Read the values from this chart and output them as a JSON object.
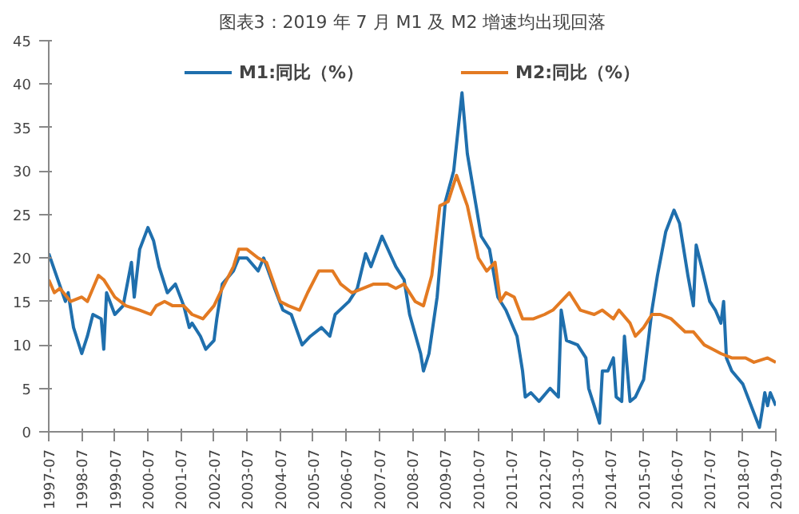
{
  "chart_data": {
    "type": "line",
    "title": "图表3：2019 年 7 月 M1 及 M2 增速均出现回落",
    "xlim": [
      "1997-07",
      "2019-07"
    ],
    "ylim": [
      0,
      45
    ],
    "yticks": [
      0,
      5,
      10,
      15,
      20,
      25,
      30,
      35,
      40,
      45
    ],
    "xticks": [
      "1997-07",
      "1998-07",
      "1999-07",
      "2000-07",
      "2001-07",
      "2002-07",
      "2003-07",
      "2004-07",
      "2005-07",
      "2006-07",
      "2007-07",
      "2008-07",
      "2009-07",
      "2010-07",
      "2011-07",
      "2012-07",
      "2013-07",
      "2014-07",
      "2015-07",
      "2016-07",
      "2017-07",
      "2018-07",
      "2019-07"
    ],
    "grid": false,
    "legend": "top",
    "marker": "none",
    "line_style": "solid",
    "series": [
      {
        "name": "M1:同比（%）",
        "color": "#1f6fad",
        "x": [
          "1997-07",
          "1998-01",
          "1998-02",
          "1998-04",
          "1998-07",
          "1998-09",
          "1998-11",
          "1999-02",
          "1999-03",
          "1999-04",
          "1999-07",
          "1999-10",
          "2000-01",
          "2000-02",
          "2000-04",
          "2000-07",
          "2000-09",
          "2000-11",
          "2001-02",
          "2001-05",
          "2001-08",
          "2001-10",
          "2001-11",
          "2002-02",
          "2002-04",
          "2002-07",
          "2002-08",
          "2002-10",
          "2003-02",
          "2003-04",
          "2003-07",
          "2003-11",
          "2004-01",
          "2004-05",
          "2004-08",
          "2004-11",
          "2005-03",
          "2005-06",
          "2005-10",
          "2006-01",
          "2006-03",
          "2006-08",
          "2006-11",
          "2007-02",
          "2007-04",
          "2007-08",
          "2008-01",
          "2008-04",
          "2008-06",
          "2008-10",
          "2008-11",
          "2009-01",
          "2009-04",
          "2009-07",
          "2009-10",
          "2010-01",
          "2010-03",
          "2010-08",
          "2010-11",
          "2011-02",
          "2011-05",
          "2011-09",
          "2011-11",
          "2011-12",
          "2012-02",
          "2012-05",
          "2012-09",
          "2012-12",
          "2013-01",
          "2013-03",
          "2013-07",
          "2013-10",
          "2013-11",
          "2014-01",
          "2014-03",
          "2014-04",
          "2014-06",
          "2014-08",
          "2014-09",
          "2014-11",
          "2014-12",
          "2015-02",
          "2015-04",
          "2015-07",
          "2015-10",
          "2015-12",
          "2016-03",
          "2016-06",
          "2016-08",
          "2016-11",
          "2017-01",
          "2017-02",
          "2017-04",
          "2017-07",
          "2017-09",
          "2017-11",
          "2017-12",
          "2018-01",
          "2018-03",
          "2018-07",
          "2018-10",
          "2019-01",
          "2019-02",
          "2019-03",
          "2019-04",
          "2019-05",
          "2019-07"
        ],
        "values": [
          20.5,
          15,
          16,
          12,
          9,
          11,
          13.5,
          13,
          9.5,
          16,
          13.5,
          14.5,
          19.5,
          15.5,
          21,
          23.5,
          22,
          19,
          16,
          17,
          14.5,
          12,
          12.5,
          11,
          9.5,
          10.5,
          13,
          17,
          18.5,
          20,
          20,
          18.5,
          20,
          16.5,
          14,
          13.5,
          10,
          11,
          12,
          11,
          13.5,
          15,
          16.5,
          20.5,
          19,
          22.5,
          19,
          17.5,
          13.5,
          9,
          7,
          9,
          15.5,
          26.5,
          30,
          39,
          32,
          22.5,
          21,
          15.5,
          14,
          11,
          7,
          4,
          4.5,
          3.5,
          5,
          4,
          14,
          10.5,
          10,
          8.5,
          5,
          3,
          1,
          7,
          7,
          8.5,
          4,
          3.5,
          11,
          3.5,
          4,
          6,
          14,
          18,
          23,
          25.5,
          24,
          18,
          14.5,
          21.5,
          19,
          15,
          14,
          12.5,
          15,
          8.5,
          7,
          5.5,
          3,
          0.5,
          2.5,
          4.5,
          3,
          4.5,
          3
        ]
      },
      {
        "name": "M2:同比（%）",
        "color": "#e37a22",
        "x": [
          "1997-07",
          "1997-09",
          "1997-11",
          "1998-03",
          "1998-07",
          "1998-09",
          "1999-01",
          "1999-03",
          "1999-07",
          "1999-11",
          "2000-04",
          "2000-08",
          "2000-10",
          "2001-01",
          "2001-04",
          "2001-08",
          "2001-11",
          "2002-03",
          "2002-07",
          "2002-10",
          "2003-02",
          "2003-04",
          "2003-07",
          "2003-11",
          "2004-02",
          "2004-07",
          "2004-10",
          "2005-02",
          "2005-05",
          "2005-09",
          "2006-02",
          "2006-05",
          "2006-09",
          "2007-01",
          "2007-05",
          "2007-10",
          "2008-01",
          "2008-04",
          "2008-08",
          "2008-11",
          "2009-02",
          "2009-05",
          "2009-08",
          "2009-11",
          "2010-03",
          "2010-07",
          "2010-10",
          "2011-01",
          "2011-03",
          "2011-05",
          "2011-08",
          "2011-11",
          "2012-03",
          "2012-07",
          "2012-10",
          "2013-01",
          "2013-04",
          "2013-08",
          "2014-01",
          "2014-04",
          "2014-08",
          "2014-10",
          "2015-02",
          "2015-04",
          "2015-07",
          "2015-10",
          "2016-01",
          "2016-05",
          "2016-10",
          "2017-01",
          "2017-05",
          "2017-08",
          "2017-11",
          "2018-03",
          "2018-08",
          "2018-11",
          "2019-04",
          "2019-07"
        ],
        "values": [
          17.5,
          16,
          16.5,
          15,
          15.5,
          15,
          18,
          17.5,
          15.5,
          14.5,
          14,
          13.5,
          14.5,
          15,
          14.5,
          14.5,
          13.5,
          13,
          14.5,
          16.5,
          19,
          21,
          21,
          20,
          19.5,
          15,
          14.5,
          14,
          16,
          18.5,
          18.5,
          17,
          16,
          16.5,
          17,
          17,
          16.5,
          17,
          15,
          14.5,
          18,
          26,
          26.5,
          29.5,
          26,
          20,
          18.5,
          19.5,
          15,
          16,
          15.5,
          13,
          13,
          13.5,
          14,
          15,
          16,
          14,
          13.5,
          14,
          13,
          14,
          12.5,
          11,
          12,
          13.5,
          13.5,
          13,
          11.5,
          11.5,
          10,
          9.5,
          9,
          8.5,
          8.5,
          8,
          8.5,
          8
        ]
      }
    ]
  }
}
